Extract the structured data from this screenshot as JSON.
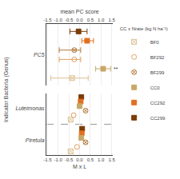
{
  "chart_data": [
    {
      "type": "dot",
      "xlabel": "mean PC score",
      "xlim": [
        -1.55,
        1.55
      ],
      "xticks": [
        -1.5,
        {
          "value": -1.0,
          "label": "-1.0"
        },
        -0.5,
        {
          "value": 0.0,
          "label": "0.0"
        },
        0.5,
        {
          "value": 1.0,
          "label": "1.0"
        },
        1.5
      ],
      "grid": true,
      "reference_x": 0,
      "legend": "right",
      "legend_title": "CC x Nrate (kg N ha⁻¹)",
      "legend_items": [
        "BF0",
        "BF292",
        "BF299",
        "CC0",
        "CC292",
        "CC299"
      ],
      "categories": [
        "PC5"
      ],
      "series": [
        {
          "name": "CC299",
          "color": "#7a3c08",
          "marker": "square",
          "values": [
            -0.05
          ],
          "ci_low": [
            -0.45
          ],
          "ci_high": [
            0.35
          ]
        },
        {
          "name": "CC292",
          "color": "#e07020",
          "marker": "square",
          "values": [
            0.35
          ],
          "ci_low": [
            0.1
          ],
          "ci_high": [
            0.65
          ]
        },
        {
          "name": "BF299",
          "color": "#b07838",
          "marker": "circle-x-open",
          "values": [
            -0.25
          ],
          "ci_low": [
            -0.95
          ],
          "ci_high": [
            0.05
          ]
        },
        {
          "name": "BF292",
          "color": "#dfa060",
          "marker": "circle-open",
          "values": [
            -0.25
          ],
          "ci_low": [
            -0.95
          ],
          "ci_high": [
            0.05
          ]
        },
        {
          "name": "CC0",
          "color": "#c8a868",
          "marker": "square",
          "values": [
            1.1
          ],
          "ci_low": [
            0.75
          ],
          "ci_high": [
            1.45
          ]
        },
        {
          "name": "BF0",
          "color": "#dbbf8e",
          "marker": "square-x-open",
          "values": [
            -0.35
          ],
          "ci_low": [
            -1.35
          ],
          "ci_high": [
            0.4
          ]
        }
      ],
      "annotations": [
        {
          "text": "**",
          "series": "CC0",
          "category": "PC5"
        }
      ]
    },
    {
      "type": "dot",
      "xlabel": "M x L",
      "ylabel": "Indicator Bacteria (Genus)",
      "xlim": [
        -1.55,
        1.55
      ],
      "xticks": [
        -1.5,
        {
          "value": -1.0,
          "label": "-1.0"
        },
        -0.5,
        {
          "value": 0.0,
          "label": "0.0"
        },
        0.5,
        {
          "value": 1.0,
          "label": "1.0"
        },
        1.5
      ],
      "grid": true,
      "reference_x": 0,
      "categories": [
        "Luteimonas",
        "Piretula"
      ],
      "series": [
        {
          "name": "CC299",
          "color": "#7a3c08",
          "marker": "square",
          "values": [
            0.08,
            0.12
          ]
        },
        {
          "name": "CC292",
          "color": "#e07020",
          "marker": "square",
          "values": [
            0.05,
            0.1
          ]
        },
        {
          "name": "CC0",
          "color": "#c8a868",
          "marker": "square",
          "values": [
            0.0,
            0.08
          ]
        },
        {
          "name": "BF299",
          "color": "#b07838",
          "marker": "circle-x-open",
          "values": [
            0.28,
            0.28
          ]
        },
        {
          "name": "BF292",
          "color": "#dfa060",
          "marker": "circle-open",
          "values": [
            -0.28,
            -0.12
          ]
        },
        {
          "name": "BF0",
          "color": "#dbbf8e",
          "marker": "square-x-open",
          "values": [
            -0.42,
            -0.42
          ]
        }
      ]
    }
  ]
}
